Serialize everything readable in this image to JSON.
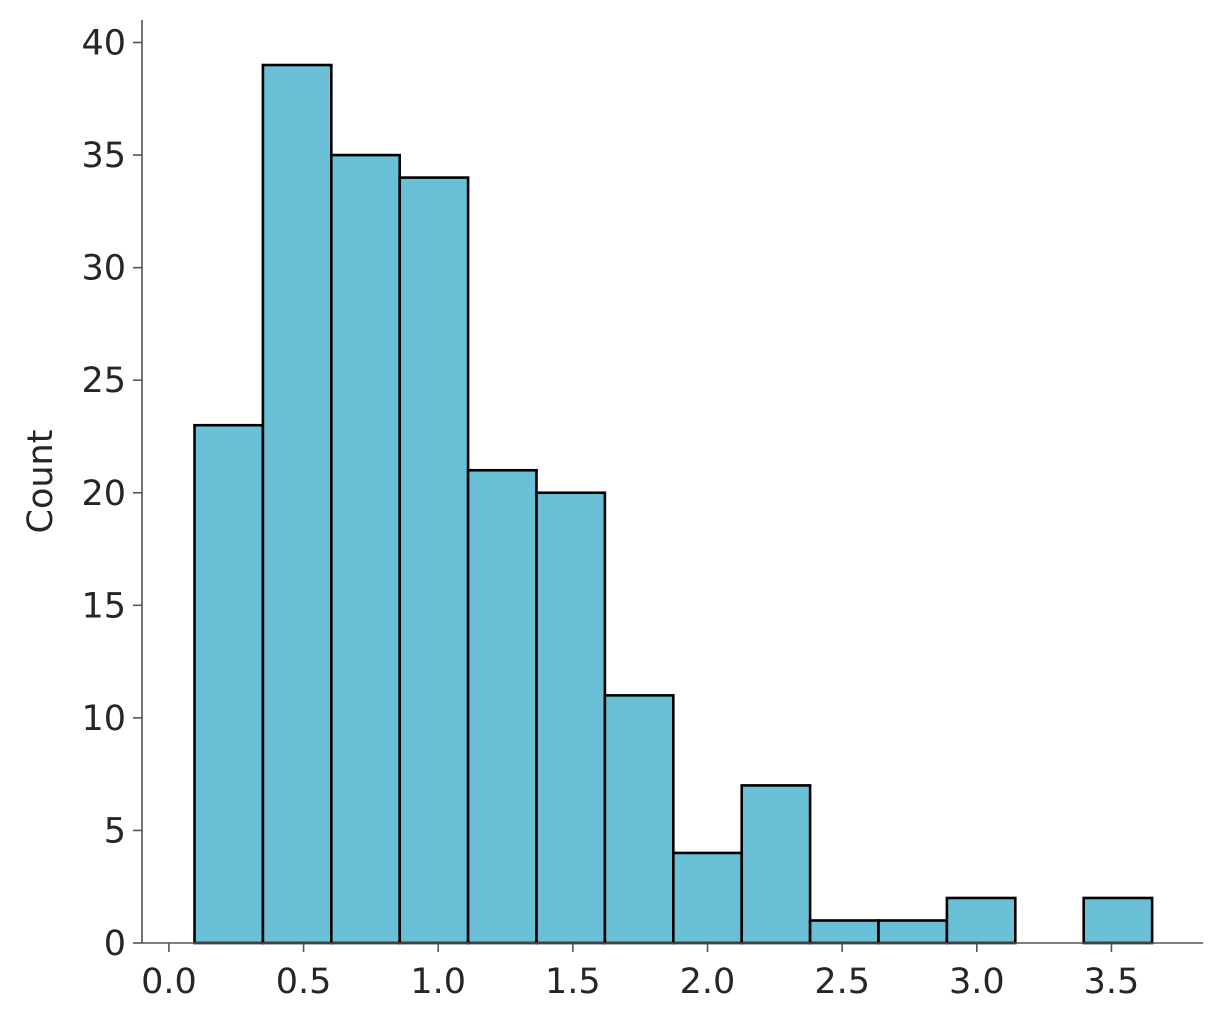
{
  "chart_data": {
    "type": "bar",
    "subtype": "histogram",
    "title": "",
    "xlabel": "",
    "ylabel": "Count",
    "bin_edges": [
      0.095,
      0.349,
      0.603,
      0.857,
      1.111,
      1.365,
      1.619,
      1.873,
      2.127,
      2.381,
      2.635,
      2.889,
      3.143,
      3.397,
      3.651
    ],
    "values": [
      23,
      39,
      35,
      34,
      21,
      20,
      11,
      4,
      7,
      1,
      1,
      2,
      0,
      2
    ],
    "xlim": [
      -0.1,
      3.84
    ],
    "ylim": [
      0,
      41
    ],
    "x_ticks": [
      0.0,
      0.5,
      1.0,
      1.5,
      2.0,
      2.5,
      3.0,
      3.5
    ],
    "x_tick_labels": [
      "0.0",
      "0.5",
      "1.0",
      "1.5",
      "2.0",
      "2.5",
      "3.0",
      "3.5"
    ],
    "y_ticks": [
      0,
      5,
      10,
      15,
      20,
      25,
      30,
      35,
      40
    ],
    "y_tick_labels": [
      "0",
      "5",
      "10",
      "15",
      "20",
      "25",
      "30",
      "35",
      "40"
    ],
    "grid": false,
    "legend": "none",
    "colors": {
      "bar_fill": "#6ac0d6",
      "bar_edge": "#000000",
      "axis": "#555555",
      "text": "#262626"
    }
  }
}
